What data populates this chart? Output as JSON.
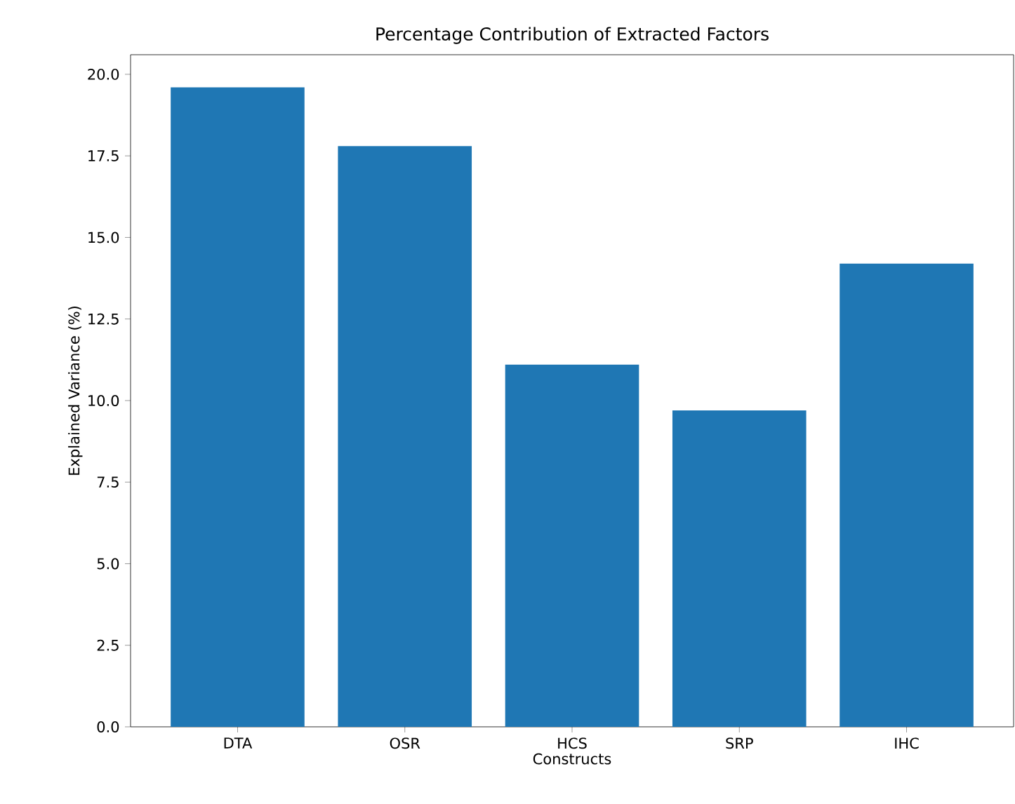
{
  "chart_data": {
    "type": "bar",
    "title": "Percentage Contribution of Extracted Factors",
    "xlabel": "Constructs",
    "ylabel": "Explained Variance (%)",
    "categories": [
      "DTA",
      "OSR",
      "HCS",
      "SRP",
      "IHC"
    ],
    "values": [
      19.6,
      17.8,
      11.1,
      9.7,
      14.2
    ],
    "color": "#1f77b4",
    "ylim": [
      0,
      20.6
    ],
    "yticks": [
      {
        "value": 0,
        "label": "0.0"
      },
      {
        "value": 2.5,
        "label": "2.5"
      },
      {
        "value": 5,
        "label": "5.0"
      },
      {
        "value": 7.5,
        "label": "7.5"
      },
      {
        "value": 10,
        "label": "10.0"
      },
      {
        "value": 12.5,
        "label": "12.5"
      },
      {
        "value": 15,
        "label": "15.0"
      },
      {
        "value": 17.5,
        "label": "17.5"
      },
      {
        "value": 20,
        "label": "20.0"
      }
    ]
  }
}
